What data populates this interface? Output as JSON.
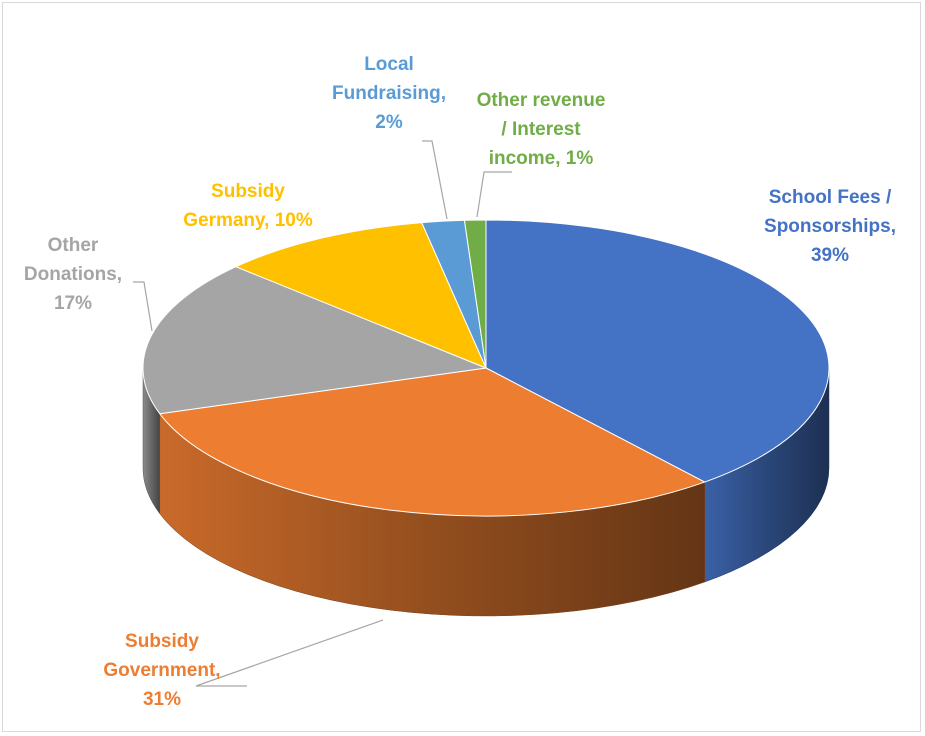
{
  "chart_data": {
    "type": "pie",
    "style": "3d",
    "title": "",
    "categories": [
      "School Fees / Sponsorships",
      "Subsidy Government",
      "Other Donations",
      "Subsidy Germany",
      "Local Fundraising",
      "Other revenue / Interest income"
    ],
    "values": [
      39,
      31,
      17,
      10,
      2,
      1
    ],
    "value_labels": [
      "39%",
      "31%",
      "17%",
      "10%",
      "2%",
      "1%"
    ],
    "colors": [
      "#4472C4",
      "#ED7D31",
      "#A5A5A5",
      "#FFC000",
      "#5B9BD5",
      "#70AD47"
    ],
    "label_lines": [
      [
        "School Fees /",
        "Sponsorships,",
        "39%"
      ],
      [
        "Subsidy",
        "Government,",
        "31%"
      ],
      [
        "Other",
        "Donations,",
        "17%"
      ],
      [
        "Subsidy",
        "Germany, 10%"
      ],
      [
        "Local",
        "Fundraising,",
        "2%"
      ],
      [
        "Other revenue",
        "/ Interest",
        "income, 1%"
      ]
    ],
    "legend": "none",
    "grid": false
  }
}
